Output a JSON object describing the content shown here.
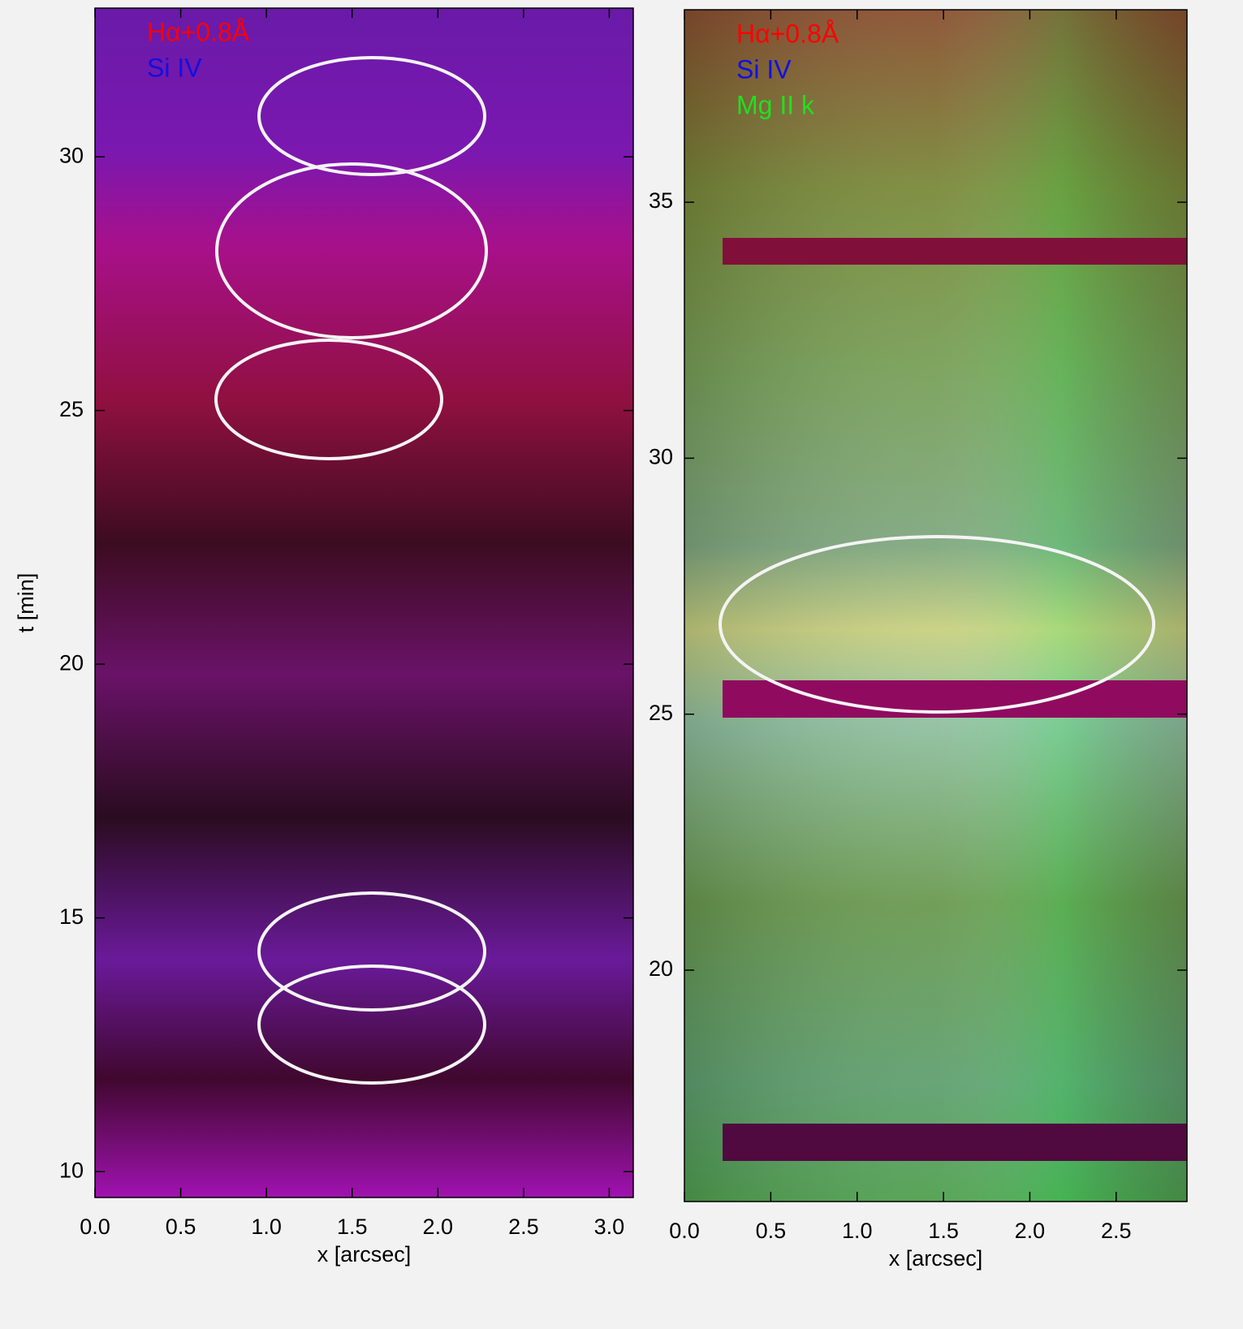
{
  "chart_data": [
    {
      "type": "image",
      "ylabel": "t [min]",
      "xlabel": "x [arcsec]",
      "series": [
        {
          "name": "Hα+0.8Å",
          "color": "#ff0000"
        },
        {
          "name": "Si IV",
          "color": "#1010e0"
        }
      ],
      "xlim": [
        0,
        3.14
      ],
      "ylim": [
        9.49,
        32.93
      ],
      "xticks": [
        {
          "value": 0,
          "label": "0.0"
        },
        {
          "value": 0.5,
          "label": "0.5"
        },
        {
          "value": 1,
          "label": "1.0"
        },
        {
          "value": 1.5,
          "label": "1.5"
        },
        {
          "value": 2,
          "label": "2.0"
        },
        {
          "value": 2.5,
          "label": "2.5"
        },
        {
          "value": 3,
          "label": "3.0"
        }
      ],
      "yticks": [
        10,
        15,
        20,
        25,
        30
      ]
    },
    {
      "type": "image",
      "xlabel": "x [arcsec]",
      "series": [
        {
          "name": "Hα+0.8Å",
          "color": "#ff0000"
        },
        {
          "name": "Si IV",
          "color": "#1010e0"
        },
        {
          "name": "Mg II k",
          "color": "#20e020"
        }
      ],
      "xlim": [
        0,
        2.91
      ],
      "ylim": [
        15.48,
        38.76
      ],
      "xticks": [
        {
          "value": 0,
          "label": "0.0"
        },
        {
          "value": 0.5,
          "label": "0.5"
        },
        {
          "value": 1,
          "label": "1.0"
        },
        {
          "value": 1.5,
          "label": "1.5"
        },
        {
          "value": 2,
          "label": "2.0"
        },
        {
          "value": 2.5,
          "label": "2.5"
        }
      ],
      "yticks": [
        20,
        25,
        30,
        35
      ]
    }
  ]
}
